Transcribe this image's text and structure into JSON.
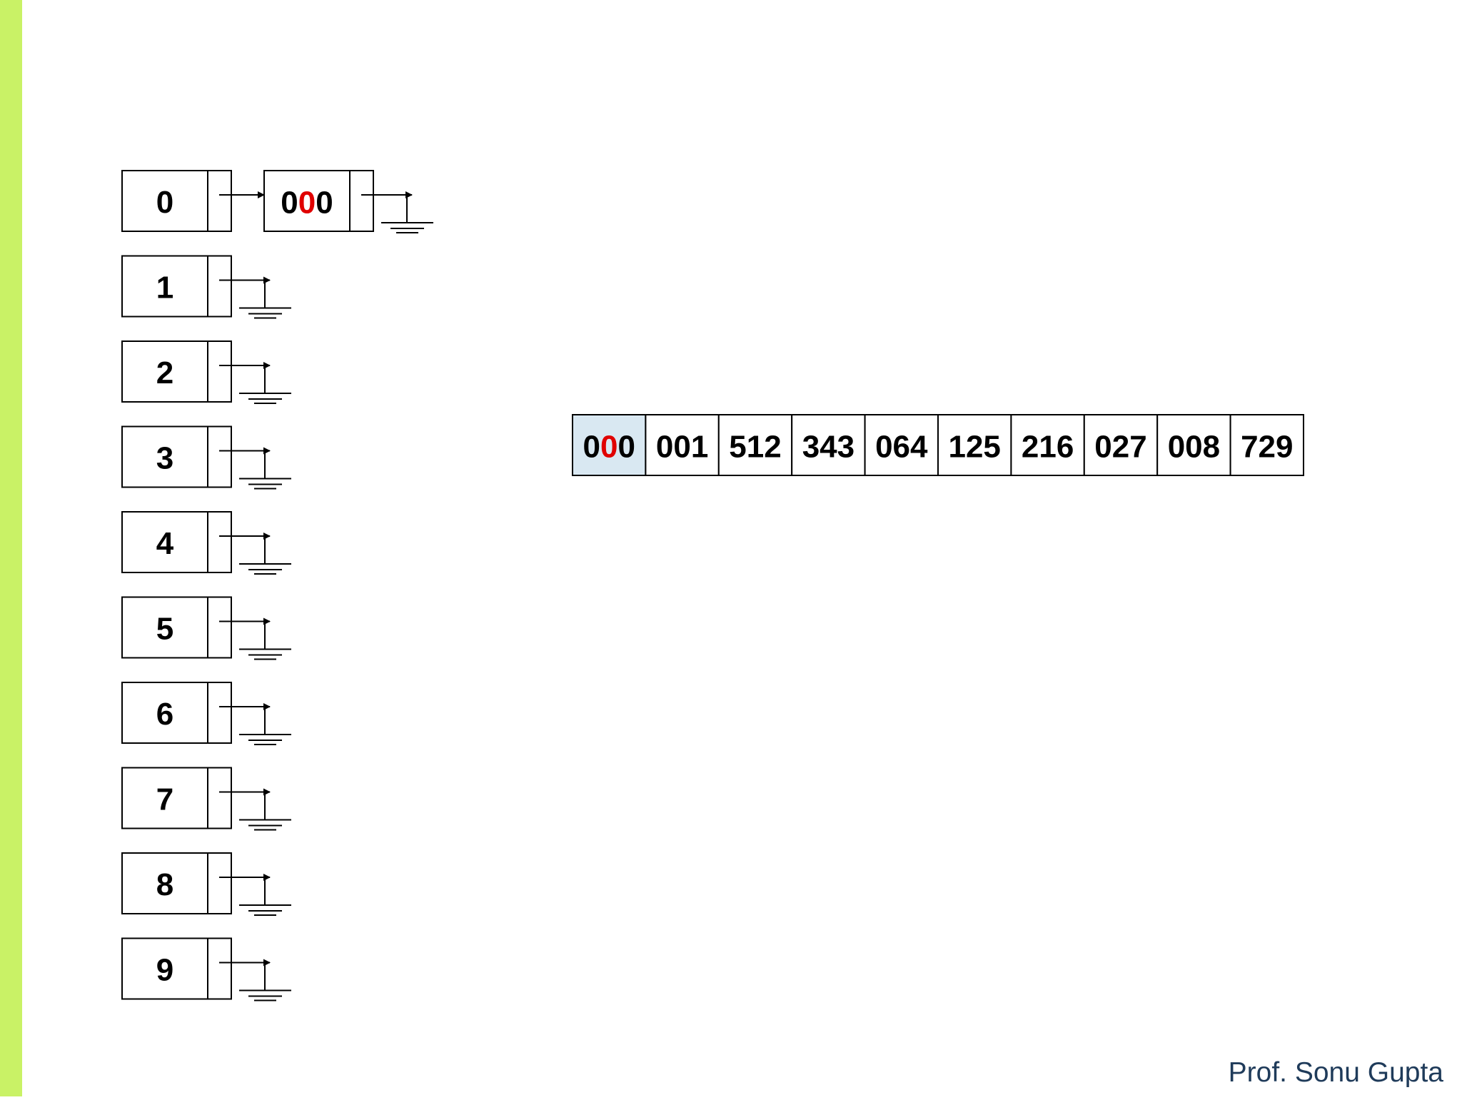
{
  "buckets": [
    {
      "label": "0",
      "nodes": [
        {
          "parts": [
            "0",
            "0",
            "0"
          ]
        }
      ]
    },
    {
      "label": "1",
      "nodes": []
    },
    {
      "label": "2",
      "nodes": []
    },
    {
      "label": "3",
      "nodes": []
    },
    {
      "label": "4",
      "nodes": []
    },
    {
      "label": "5",
      "nodes": []
    },
    {
      "label": "6",
      "nodes": []
    },
    {
      "label": "7",
      "nodes": []
    },
    {
      "label": "8",
      "nodes": []
    },
    {
      "label": "9",
      "nodes": []
    }
  ],
  "array": [
    {
      "parts": [
        "0",
        "0",
        "0"
      ],
      "highlighted": true
    },
    {
      "parts": [
        "001"
      ]
    },
    {
      "parts": [
        "512"
      ]
    },
    {
      "parts": [
        "343"
      ]
    },
    {
      "parts": [
        "064"
      ]
    },
    {
      "parts": [
        "125"
      ]
    },
    {
      "parts": [
        "216"
      ]
    },
    {
      "parts": [
        "027"
      ]
    },
    {
      "parts": [
        "008"
      ]
    },
    {
      "parts": [
        "729"
      ]
    }
  ],
  "footer": "Prof. Sonu Gupta"
}
